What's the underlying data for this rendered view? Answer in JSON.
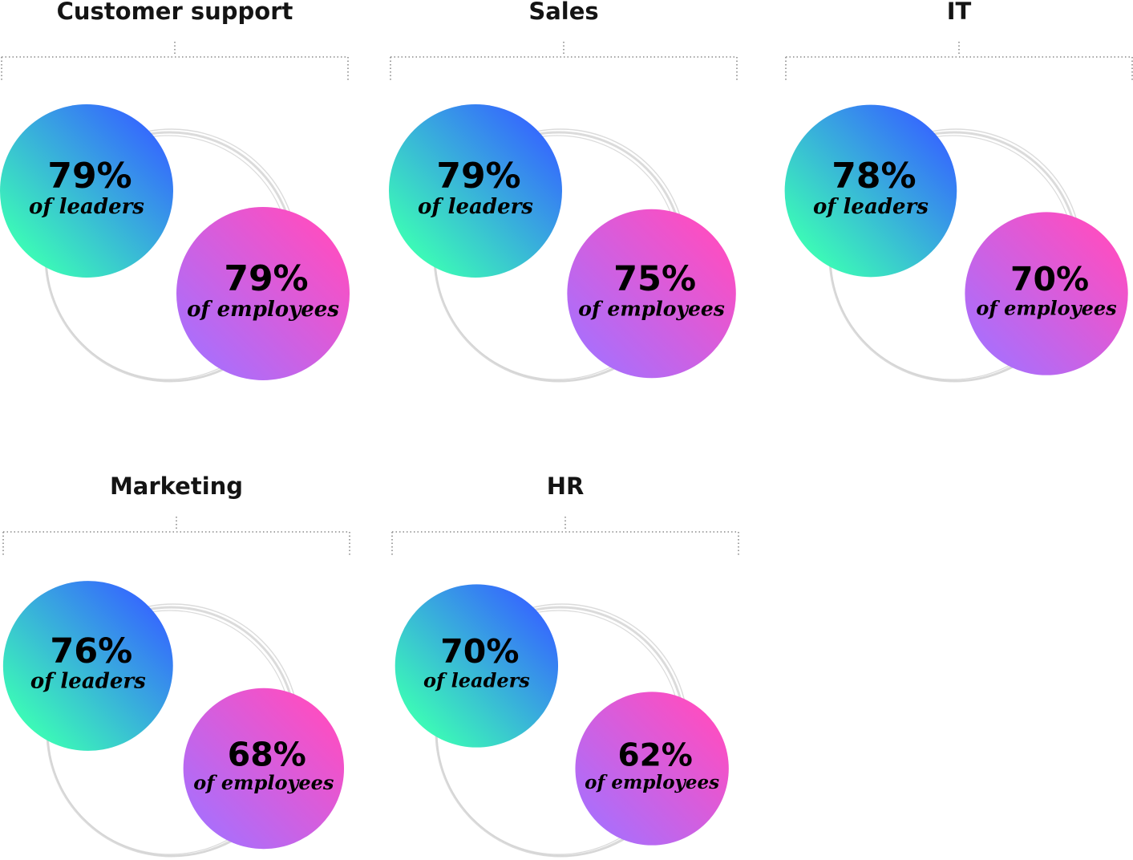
{
  "chart_data": [
    {
      "type": "venn",
      "title": "Customer support",
      "series": [
        {
          "name": "of leaders",
          "value": 79,
          "label": "79%"
        },
        {
          "name": "of employees",
          "value": 79,
          "label": "79%"
        }
      ]
    },
    {
      "type": "venn",
      "title": "Sales",
      "series": [
        {
          "name": "of leaders",
          "value": 79,
          "label": "79%"
        },
        {
          "name": "of employees",
          "value": 75,
          "label": "75%"
        }
      ]
    },
    {
      "type": "venn",
      "title": "IT",
      "series": [
        {
          "name": "of leaders",
          "value": 78,
          "label": "78%"
        },
        {
          "name": "of employees",
          "value": 70,
          "label": "70%"
        }
      ]
    },
    {
      "type": "venn",
      "title": "Marketing",
      "series": [
        {
          "name": "of leaders",
          "value": 76,
          "label": "76%"
        },
        {
          "name": "of employees",
          "value": 68,
          "label": "68%"
        }
      ]
    },
    {
      "type": "venn",
      "title": "HR",
      "series": [
        {
          "name": "of leaders",
          "value": 70,
          "label": "70%"
        },
        {
          "name": "of employees",
          "value": 62,
          "label": "62%"
        }
      ]
    }
  ],
  "colors": {
    "leaders_gradient": [
      "#3cffb4",
      "#3566ff"
    ],
    "employees_gradient": [
      "#a96ffc",
      "#ff4dc0"
    ],
    "ring": "#d5d5d5",
    "bracket": "#8a8a8a",
    "text": "#141414"
  }
}
